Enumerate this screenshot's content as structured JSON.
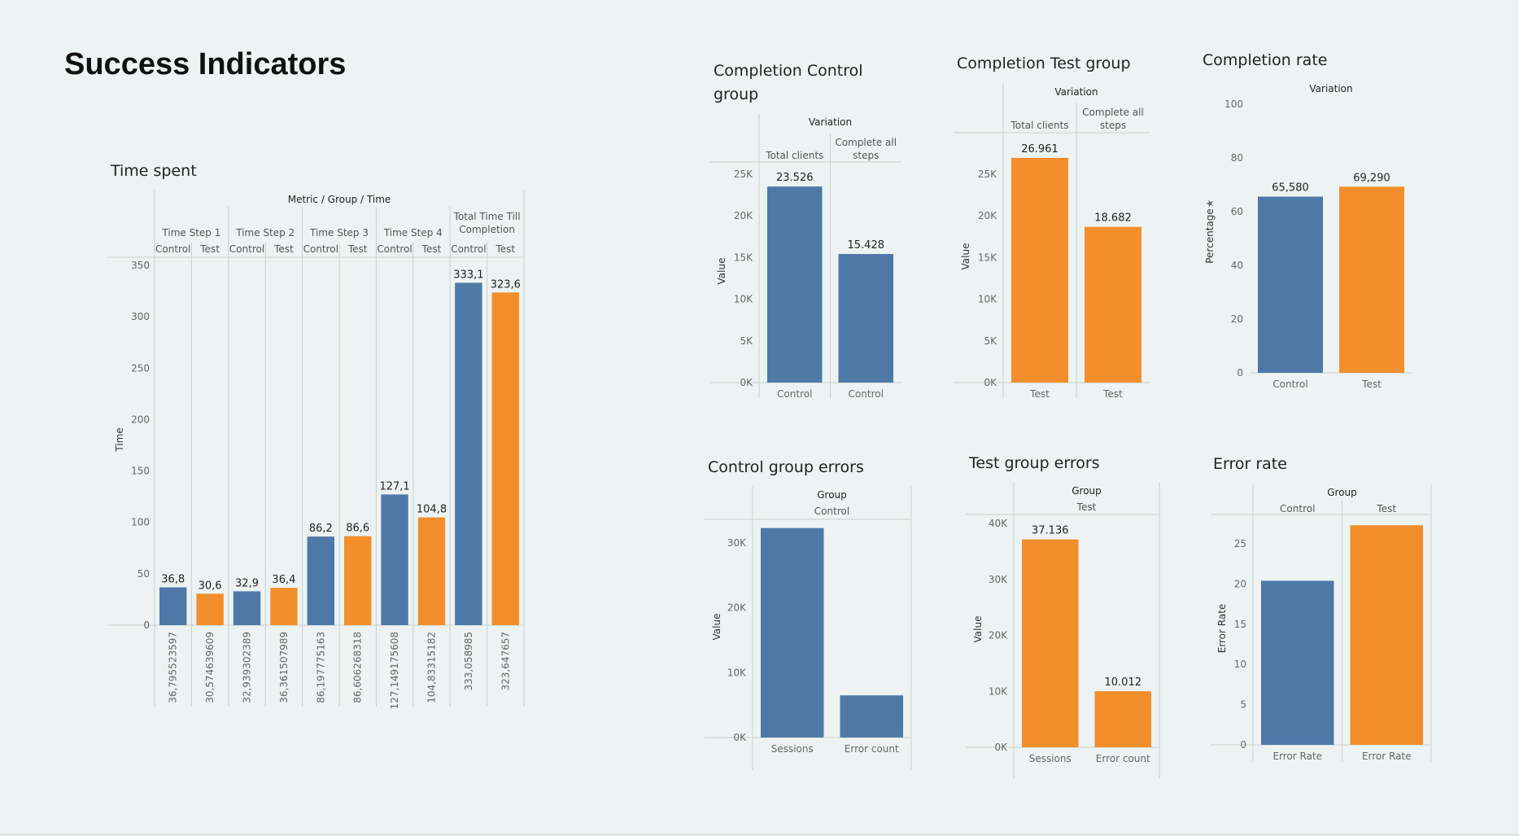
{
  "page_title": "Success Indicators",
  "colors": {
    "control": "#4e79a7",
    "test": "#f28e2b",
    "background": "#ecf3f2"
  },
  "chart_data": [
    {
      "id": "time-spent",
      "type": "bar",
      "title": "Time spent",
      "header": "Metric / Group / Time",
      "ylabel": "Time",
      "ylim": [
        0,
        350
      ],
      "yticks": [
        0,
        50,
        100,
        150,
        200,
        250,
        300,
        350
      ],
      "groups": [
        {
          "name": "Time Step 1",
          "bars": [
            {
              "group": "Control",
              "value": 36.795523597,
              "label": "36,8",
              "raw_label": "36,795523597"
            },
            {
              "group": "Test",
              "value": 30.574639609,
              "label": "30,6",
              "raw_label": "30,574639609"
            }
          ]
        },
        {
          "name": "Time Step 2",
          "bars": [
            {
              "group": "Control",
              "value": 32.939302389,
              "label": "32,9",
              "raw_label": "32,939302389"
            },
            {
              "group": "Test",
              "value": 36.361507989,
              "label": "36,4",
              "raw_label": "36,361507989"
            }
          ]
        },
        {
          "name": "Time Step 3",
          "bars": [
            {
              "group": "Control",
              "value": 86.197775163,
              "label": "86,2",
              "raw_label": "86,197775163"
            },
            {
              "group": "Test",
              "value": 86.606268318,
              "label": "86,6",
              "raw_label": "86,606268318"
            }
          ]
        },
        {
          "name": "Time Step 4",
          "bars": [
            {
              "group": "Control",
              "value": 127.149175608,
              "label": "127,1",
              "raw_label": "127,149175608"
            },
            {
              "group": "Test",
              "value": 104.833315182,
              "label": "104,8",
              "raw_label": "104,83315182"
            }
          ]
        },
        {
          "name": "Total Time Till Completion",
          "name_lines": [
            "Total Time Till",
            "Completion"
          ],
          "bars": [
            {
              "group": "Control",
              "value": 333.058985,
              "label": "333,1",
              "raw_label": "333,058985"
            },
            {
              "group": "Test",
              "value": 323.647657,
              "label": "323,6",
              "raw_label": "323,647657"
            }
          ]
        }
      ]
    },
    {
      "id": "completion-control",
      "type": "bar",
      "title": "Completion Control group",
      "header": "Variation",
      "ylabel": "Value",
      "ylim": [
        0,
        25000
      ],
      "yticks": [
        {
          "v": 0,
          "t": "0K"
        },
        {
          "v": 5000,
          "t": "5K"
        },
        {
          "v": 10000,
          "t": "10K"
        },
        {
          "v": 15000,
          "t": "15K"
        },
        {
          "v": 20000,
          "t": "20K"
        },
        {
          "v": 25000,
          "t": "25K"
        }
      ],
      "columns": [
        {
          "header": [
            "Total clients"
          ],
          "category": "Control",
          "value": 23526,
          "label": "23.526",
          "color": "control"
        },
        {
          "header": [
            "Complete all",
            "steps"
          ],
          "category": "Control",
          "value": 15428,
          "label": "15.428",
          "color": "control"
        }
      ]
    },
    {
      "id": "completion-test",
      "type": "bar",
      "title": "Completion Test group",
      "header": "Variation",
      "ylabel": "Value",
      "ylim": [
        0,
        25000
      ],
      "yticks": [
        {
          "v": 0,
          "t": "0K"
        },
        {
          "v": 5000,
          "t": "5K"
        },
        {
          "v": 10000,
          "t": "10K"
        },
        {
          "v": 15000,
          "t": "15K"
        },
        {
          "v": 20000,
          "t": "20K"
        },
        {
          "v": 25000,
          "t": "25K"
        }
      ],
      "columns": [
        {
          "header": [
            "Total clients"
          ],
          "category": "Test",
          "value": 26961,
          "label": "26.961",
          "color": "test"
        },
        {
          "header": [
            "Complete all",
            "steps"
          ],
          "category": "Test",
          "value": 18682,
          "label": "18.682",
          "color": "test"
        }
      ]
    },
    {
      "id": "completion-rate",
      "type": "bar",
      "title": "Completion rate",
      "header": "Variation",
      "ylabel": "Percentage",
      "ylim": [
        0,
        100
      ],
      "yticks": [
        {
          "v": 0,
          "t": "0"
        },
        {
          "v": 20,
          "t": "20"
        },
        {
          "v": 40,
          "t": "40"
        },
        {
          "v": 60,
          "t": "60"
        },
        {
          "v": 80,
          "t": "80"
        },
        {
          "v": 100,
          "t": "100"
        }
      ],
      "columns": [
        {
          "category": "Control",
          "value": 65.58,
          "label": "65,580",
          "color": "control"
        },
        {
          "category": "Test",
          "value": 69.29,
          "label": "69,290",
          "color": "test"
        }
      ]
    },
    {
      "id": "control-errors",
      "type": "bar",
      "title": "Control group errors",
      "header": "Group",
      "subheader": "Control",
      "ylabel": "Value",
      "ylim": [
        0,
        30000
      ],
      "yticks": [
        {
          "v": 0,
          "t": "0K"
        },
        {
          "v": 10000,
          "t": "10K"
        },
        {
          "v": 20000,
          "t": "20K"
        },
        {
          "v": 30000,
          "t": "30K"
        }
      ],
      "columns": [
        {
          "category": "Sessions",
          "value": 32300,
          "label": "",
          "color": "control"
        },
        {
          "category": "Error count",
          "value": 6500,
          "label": "",
          "color": "control"
        }
      ]
    },
    {
      "id": "test-errors",
      "type": "bar",
      "title": "Test group errors",
      "header": "Group",
      "subheader": "Test",
      "ylabel": "Value",
      "ylim": [
        0,
        40000
      ],
      "yticks": [
        {
          "v": 0,
          "t": "0K"
        },
        {
          "v": 10000,
          "t": "10K"
        },
        {
          "v": 20000,
          "t": "20K"
        },
        {
          "v": 30000,
          "t": "30K"
        },
        {
          "v": 40000,
          "t": "40K"
        }
      ],
      "columns": [
        {
          "category": "Sessions",
          "value": 37136,
          "label": "37.136",
          "color": "test"
        },
        {
          "category": "Error count",
          "value": 10012,
          "label": "10.012",
          "color": "test"
        }
      ]
    },
    {
      "id": "error-rate",
      "type": "bar",
      "title": "Error rate",
      "header": "Group",
      "ylabel": "Error Rate",
      "ylim": [
        0,
        25
      ],
      "yticks": [
        {
          "v": 0,
          "t": "0"
        },
        {
          "v": 5,
          "t": "5"
        },
        {
          "v": 10,
          "t": "10"
        },
        {
          "v": 15,
          "t": "15"
        },
        {
          "v": 20,
          "t": "20"
        },
        {
          "v": 25,
          "t": "25"
        }
      ],
      "columns": [
        {
          "header": [
            "Control"
          ],
          "category": "Error Rate",
          "value": 20.4,
          "label": "",
          "color": "control"
        },
        {
          "header": [
            "Test"
          ],
          "category": "Error Rate",
          "value": 27.3,
          "label": "",
          "color": "test"
        }
      ]
    }
  ]
}
